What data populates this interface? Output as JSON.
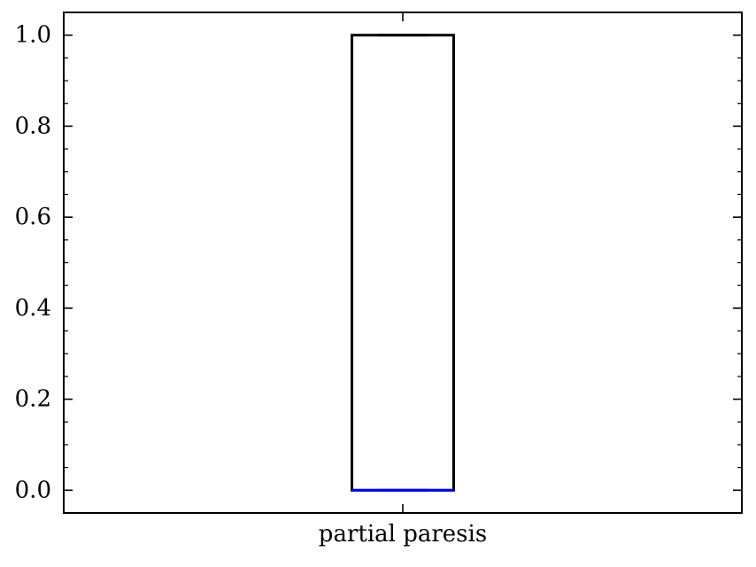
{
  "chart_data": {
    "type": "box",
    "title": "",
    "xlabel": "",
    "ylabel": "",
    "categories": [
      "partial paresis"
    ],
    "boxes": [
      {
        "category": "partial paresis",
        "min": 0.0,
        "q1": 0.0,
        "median": 0.0,
        "q3": 1.0,
        "max": 1.0
      }
    ],
    "ylim": [
      -0.05,
      1.05
    ],
    "yticks": [
      0.0,
      0.2,
      0.4,
      0.6,
      0.8,
      1.0
    ],
    "ytick_labels": [
      "0.0",
      "0.2",
      "0.4",
      "0.6",
      "0.8",
      "1.0"
    ],
    "y_minor_step": 0.05,
    "grid": false,
    "legend": "none",
    "colors": {
      "box": "#000000",
      "median": "#0000ff",
      "axes": "#000000"
    }
  }
}
